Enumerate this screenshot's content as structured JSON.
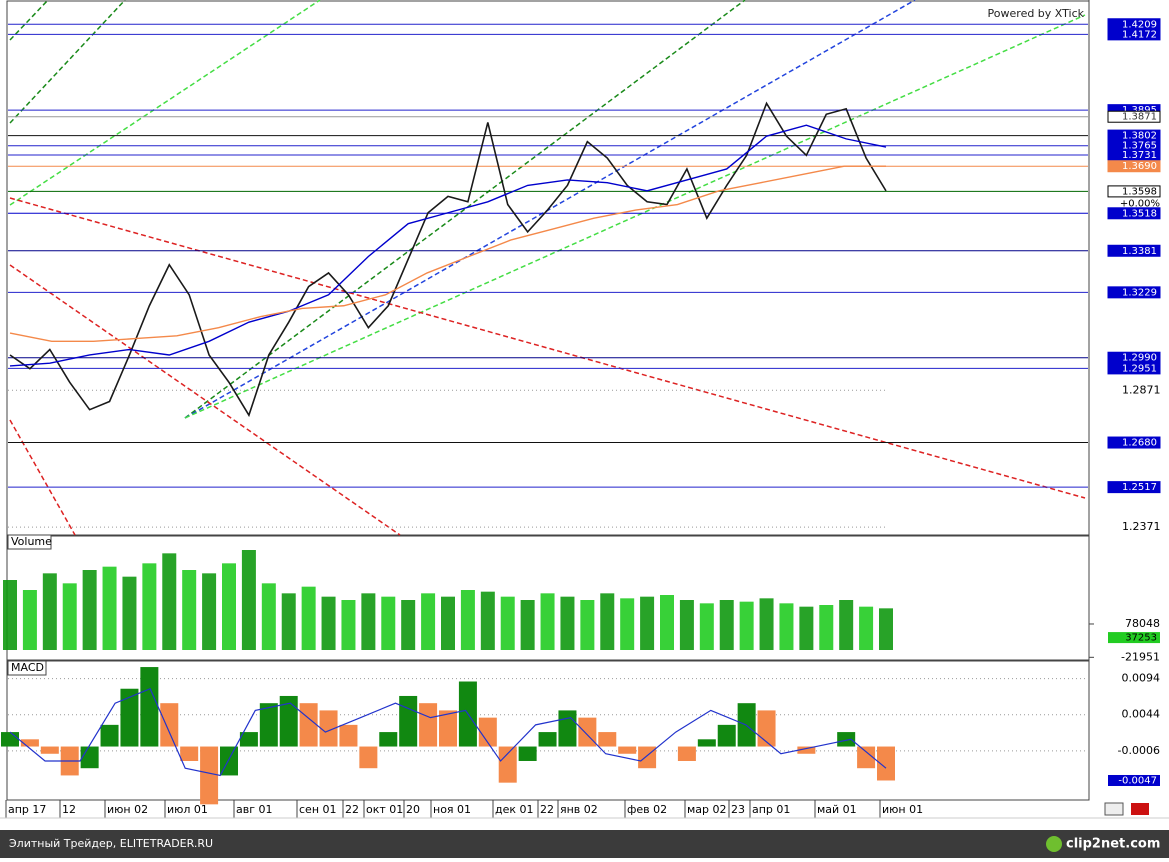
{
  "watermark": "Powered by XTick",
  "footer": {
    "left": "Элитный Трейдер, ELITETRADER.RU",
    "right": "clip2net.com"
  },
  "x_axis_labels": [
    "апр 17",
    "12",
    "июн 02",
    "июл 01",
    "авг 01",
    "сен 01",
    "22",
    "окт 01",
    "20",
    "ноя 01",
    "дек 01",
    "22",
    "янв 02",
    "фев 02",
    "мар 02",
    "23",
    "апр 01",
    "май 01",
    "июн 01"
  ],
  "chart_data": [
    {
      "type": "line",
      "ylim": [
        1.2342,
        1.4294
      ],
      "yticks": [
        1.2371,
        1.2871
      ],
      "series": [
        {
          "color": "#1a1a1a",
          "values": [
            1.3,
            1.295,
            1.302,
            1.29,
            1.28,
            1.283,
            1.3,
            1.318,
            1.333,
            1.322,
            1.3,
            1.29,
            1.278,
            1.3,
            1.312,
            1.325,
            1.33,
            1.322,
            1.31,
            1.318,
            1.335,
            1.352,
            1.358,
            1.356,
            1.385,
            1.355,
            1.345,
            1.353,
            1.362,
            1.378,
            1.372,
            1.362,
            1.356,
            1.355,
            1.368,
            1.35,
            1.362,
            1.373,
            1.392,
            1.38,
            1.373,
            1.388,
            1.39,
            1.372,
            1.36
          ]
        },
        {
          "color": "#0000cc",
          "values": [
            1.296,
            1.297,
            1.3,
            1.302,
            1.3,
            1.305,
            1.312,
            1.316,
            1.322,
            1.336,
            1.348,
            1.352,
            1.356,
            1.362,
            1.364,
            1.363,
            1.36,
            1.364,
            1.368,
            1.38,
            1.384,
            1.379,
            1.376
          ]
        },
        {
          "color": "#f4894a",
          "values": [
            1.308,
            1.305,
            1.305,
            1.306,
            1.307,
            1.31,
            1.314,
            1.317,
            1.318,
            1.322,
            1.33,
            1.336,
            1.342,
            1.346,
            1.35,
            1.353,
            1.355,
            1.36,
            1.363,
            1.366,
            1.369,
            1.369
          ]
        }
      ],
      "levels": [
        {
          "value": 1.4209,
          "label": "1.4209",
          "line": "#2222cc",
          "bg": "#0000cc",
          "fg": "#ffffff"
        },
        {
          "value": 1.4172,
          "label": "1.4172",
          "line": "#2222cc",
          "bg": "#0000cc",
          "fg": "#ffffff"
        },
        {
          "value": 1.3895,
          "label": "1.3895",
          "line": "#2222cc",
          "bg": "#0000cc",
          "fg": "#ffffff"
        },
        {
          "value": 1.3871,
          "label": "1.3871",
          "line": "#999999",
          "bg": "#ffffff",
          "fg": "#333333"
        },
        {
          "value": 1.3802,
          "label": "1.3802",
          "line": "#111111",
          "bg": "#0000cc",
          "fg": "#ffffff"
        },
        {
          "value": 1.3765,
          "label": "1.3765",
          "line": "#2222cc",
          "bg": "#0000cc",
          "fg": "#ffffff"
        },
        {
          "value": 1.3731,
          "label": "1.3731",
          "line": "#2222cc",
          "bg": "#0000cc",
          "fg": "#ffffff"
        },
        {
          "value": 1.369,
          "label": "1.3690",
          "line": "#f4894a",
          "bg": "#f4894a",
          "fg": "#ffffff"
        },
        {
          "value": 1.3598,
          "label": "1.3598",
          "line": "#006600",
          "bg": "#ffffff",
          "fg": "#000000"
        },
        {
          "value": 1.3518,
          "label": "1.3518",
          "line": "#0000cc",
          "bg": "#0000cc",
          "fg": "#ffffff"
        },
        {
          "value": 1.3381,
          "label": "1.3381",
          "line": "#000088",
          "bg": "#0000cc",
          "fg": "#ffffff"
        },
        {
          "value": 1.3229,
          "label": "1.3229",
          "line": "#2222cc",
          "bg": "#0000cc",
          "fg": "#ffffff"
        },
        {
          "value": 1.299,
          "label": "1.2990",
          "line": "#000088",
          "bg": "#0000cc",
          "fg": "#ffffff"
        },
        {
          "value": 1.2951,
          "label": "1.2951",
          "line": "#2222cc",
          "bg": "#0000cc",
          "fg": "#ffffff"
        },
        {
          "value": 1.268,
          "label": "1.2680",
          "line": "#111111",
          "bg": "#0000cc",
          "fg": "#ffffff"
        },
        {
          "value": 1.2517,
          "label": "1.2517",
          "line": "#2222cc",
          "bg": "#0000cc",
          "fg": "#ffffff"
        }
      ],
      "change_label": "+0.00%"
    },
    {
      "type": "bar",
      "title": "Volume",
      "ylim": [
        -30000,
        330000
      ],
      "yticks": [
        78048,
        -21951
      ],
      "last_value": 37253,
      "color": "#22cc22",
      "values": [
        210000,
        180000,
        230000,
        200000,
        240000,
        250000,
        220000,
        260000,
        290000,
        240000,
        230000,
        260000,
        300000,
        200000,
        170000,
        190000,
        160000,
        150000,
        170000,
        160000,
        150000,
        170000,
        160000,
        180000,
        175000,
        160000,
        150000,
        170000,
        160000,
        150000,
        170000,
        155000,
        160000,
        165000,
        150000,
        140000,
        150000,
        145000,
        155000,
        140000,
        130000,
        135000,
        150000,
        130000,
        125000
      ]
    },
    {
      "type": "macd",
      "title": "MACD",
      "ylim": [
        -0.0074,
        0.0117
      ],
      "yticks": [
        0.0094,
        0.0044,
        -0.0006
      ],
      "last_value": -0.0047,
      "values": [
        0.002,
        0.001,
        -0.001,
        -0.004,
        -0.003,
        0.003,
        0.008,
        0.011,
        0.006,
        -0.002,
        -0.008,
        -0.004,
        0.002,
        0.006,
        0.007,
        0.006,
        0.005,
        0.003,
        -0.003,
        0.002,
        0.007,
        0.006,
        0.005,
        0.009,
        0.004,
        -0.005,
        -0.002,
        0.002,
        0.005,
        0.004,
        0.002,
        -0.001,
        -0.003,
        0.0,
        -0.002,
        0.001,
        0.003,
        0.006,
        0.005,
        0.0,
        -0.001,
        0.0,
        0.002,
        -0.003,
        -0.0047
      ],
      "signal": [
        0.002,
        -0.002,
        -0.002,
        0.006,
        0.008,
        -0.003,
        -0.004,
        0.005,
        0.006,
        0.002,
        0.004,
        0.006,
        0.004,
        0.005,
        -0.002,
        0.003,
        0.004,
        -0.001,
        -0.002,
        0.002,
        0.005,
        0.003,
        -0.001,
        0.0,
        0.001,
        -0.003
      ]
    }
  ]
}
